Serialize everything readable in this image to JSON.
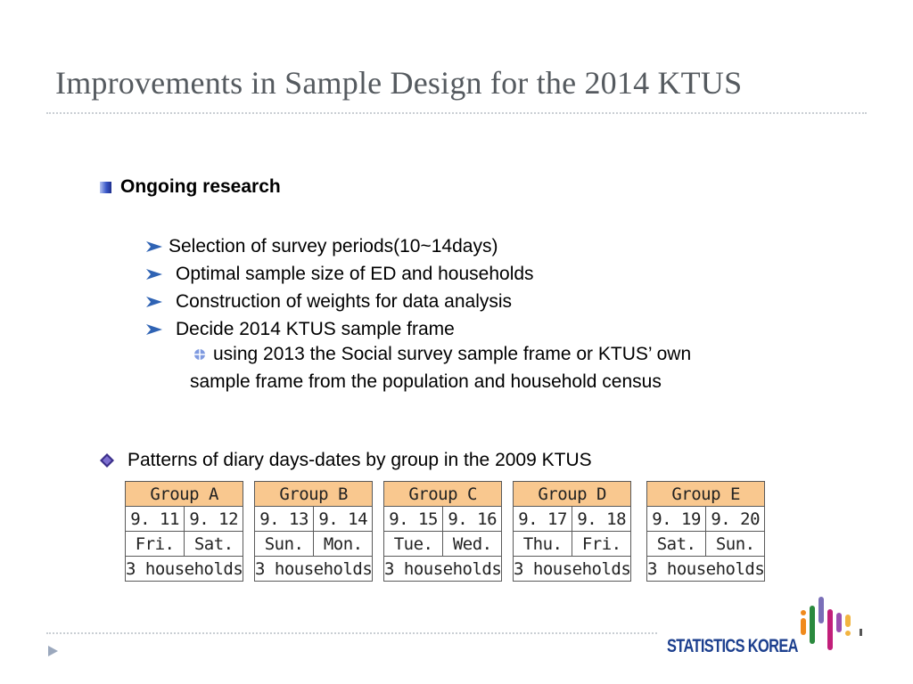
{
  "title": "Improvements in Sample Design for the 2014 KTUS",
  "section": {
    "label": "Ongoing research",
    "items": [
      "Selection of survey periods(10~14days)",
      "Optimal sample size of ED and households",
      "Construction of weights for data analysis",
      "Decide 2014 KTUS sample frame"
    ],
    "nested_line1": "using 2013 the Social survey sample frame or KTUS’ own",
    "nested_line2": "sample frame from the population and household census"
  },
  "patterns": {
    "label": "Patterns of diary days-dates by group in the 2009 KTUS",
    "groups": [
      {
        "name": "Group A",
        "dates": [
          "9. 11",
          "9. 12"
        ],
        "days": [
          "Fri.",
          "Sat."
        ],
        "households": "3 households"
      },
      {
        "name": "Group B",
        "dates": [
          "9. 13",
          "9. 14"
        ],
        "days": [
          "Sun.",
          "Mon."
        ],
        "households": "3 households"
      },
      {
        "name": "Group C",
        "dates": [
          "9. 15",
          "9. 16"
        ],
        "days": [
          "Tue.",
          "Wed."
        ],
        "households": "3 households"
      },
      {
        "name": "Group D",
        "dates": [
          "9. 17",
          "9. 18"
        ],
        "days": [
          "Thu.",
          "Fri."
        ],
        "households": "3 households"
      },
      {
        "name": "Group E",
        "dates": [
          "9. 19",
          "9. 20"
        ],
        "days": [
          "Sat.",
          "Sun."
        ],
        "households": "3 households"
      }
    ]
  },
  "logo": {
    "text": "STATISTICS KOREA"
  },
  "colors": {
    "accent": "#3a58c8",
    "table_head": "#f9c88f",
    "title": "#555a5f"
  }
}
